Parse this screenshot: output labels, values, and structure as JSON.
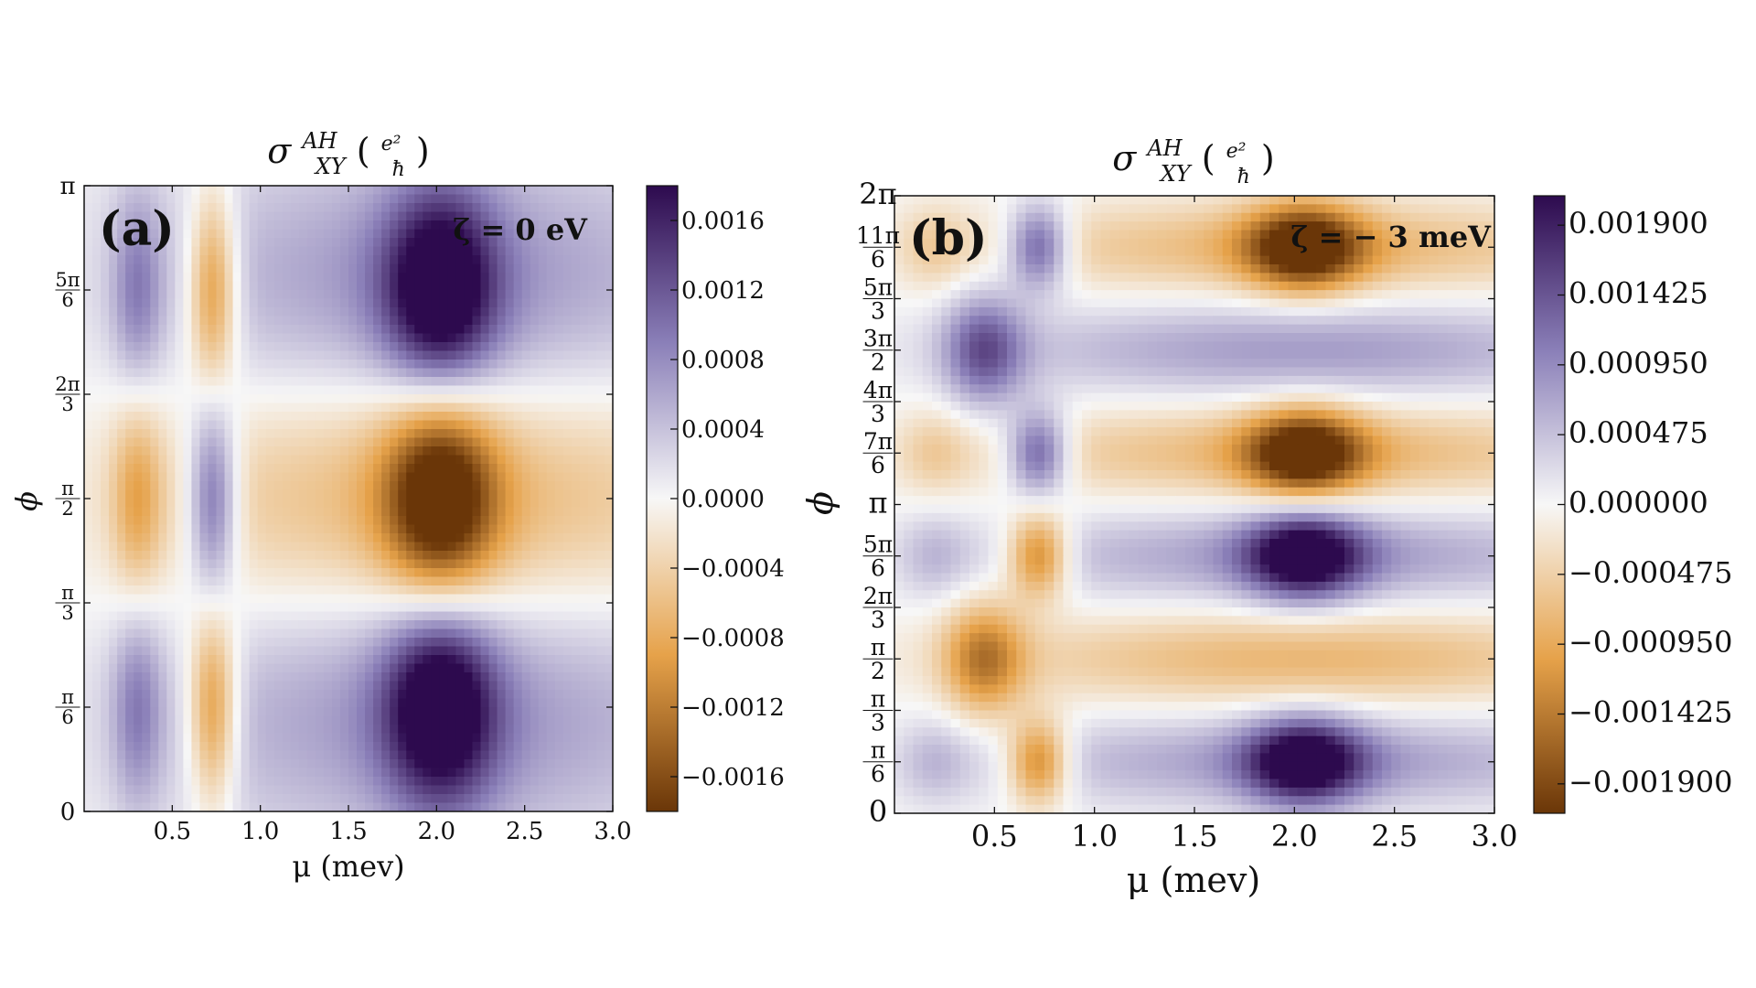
{
  "chart_data": [
    {
      "panel": "(a)",
      "type": "heatmap",
      "title_sym": "σ",
      "title_sup": "AH",
      "title_sub": "XY",
      "title_unit_num": "e²",
      "title_unit_den": "ħ",
      "annotation": "ζ = 0 eV",
      "xlabel": "μ (mev)",
      "ylabel": "ϕ",
      "xlim": [
        0.0,
        3.0
      ],
      "ylim_rad": [
        0,
        3.14159
      ],
      "xticks": [
        {
          "value": 0.5,
          "label": "0.5"
        },
        {
          "value": 1.0,
          "label": "1.0"
        },
        {
          "value": 1.5,
          "label": "1.5"
        },
        {
          "value": 2.0,
          "label": "2.0"
        },
        {
          "value": 2.5,
          "label": "2.5"
        },
        {
          "value": 3.0,
          "label": "3.0"
        }
      ],
      "yticks": [
        {
          "value": 0,
          "label": "0"
        },
        {
          "value": 0.5236,
          "num": "π",
          "den": "6"
        },
        {
          "value": 1.0472,
          "num": "π",
          "den": "3"
        },
        {
          "value": 1.5708,
          "num": "π",
          "den": "2"
        },
        {
          "value": 2.0944,
          "num": "2π",
          "den": "3"
        },
        {
          "value": 2.618,
          "num": "5π",
          "den": "6"
        },
        {
          "value": 3.14159,
          "label": "π"
        }
      ],
      "colorbar": {
        "range": [
          -0.0018,
          0.0018
        ],
        "ticks": [
          {
            "value": 0.0016,
            "label": "0.0016"
          },
          {
            "value": 0.0012,
            "label": "0.0012"
          },
          {
            "value": 0.0008,
            "label": "0.0008"
          },
          {
            "value": 0.0004,
            "label": "0.0004"
          },
          {
            "value": 0.0,
            "label": "0.0000"
          },
          {
            "value": -0.0004,
            "label": "−0.0004"
          },
          {
            "value": -0.0008,
            "label": "−0.0008"
          },
          {
            "value": -0.0012,
            "label": "−0.0012"
          },
          {
            "value": -0.0016,
            "label": "−0.0016"
          }
        ]
      },
      "features_description": "alternating bands in phi with sign flips at pi/3 and 2pi/3; extremes near mu=2.0",
      "blobs": [
        {
          "mu": 0.3,
          "phi": 2.618,
          "smu": 0.1,
          "sphi": 0.35,
          "amp": 0.0007
        },
        {
          "mu": 0.73,
          "phi": 2.618,
          "smu": 0.1,
          "sphi": 0.35,
          "amp": -0.0012
        },
        {
          "mu": 2.02,
          "phi": 2.618,
          "smu": 0.22,
          "sphi": 0.35,
          "amp": 0.0018
        },
        {
          "mu": 2.02,
          "phi": 2.618,
          "smu": 1.2,
          "sphi": 0.5,
          "amp": 0.0008
        },
        {
          "mu": 0.3,
          "phi": 1.5708,
          "smu": 0.1,
          "sphi": 0.35,
          "amp": -0.0007
        },
        {
          "mu": 0.73,
          "phi": 1.5708,
          "smu": 0.1,
          "sphi": 0.35,
          "amp": 0.0012
        },
        {
          "mu": 2.02,
          "phi": 1.5708,
          "smu": 0.22,
          "sphi": 0.35,
          "amp": -0.0018
        },
        {
          "mu": 2.02,
          "phi": 1.5708,
          "smu": 1.2,
          "sphi": 0.5,
          "amp": -0.0008
        },
        {
          "mu": 0.3,
          "phi": 0.5236,
          "smu": 0.1,
          "sphi": 0.35,
          "amp": 0.0007
        },
        {
          "mu": 0.73,
          "phi": 0.5236,
          "smu": 0.1,
          "sphi": 0.35,
          "amp": -0.0012
        },
        {
          "mu": 2.02,
          "phi": 0.5236,
          "smu": 0.22,
          "sphi": 0.35,
          "amp": 0.0018
        },
        {
          "mu": 2.02,
          "phi": 0.5236,
          "smu": 1.2,
          "sphi": 0.5,
          "amp": 0.0008
        }
      ]
    },
    {
      "panel": "(b)",
      "type": "heatmap",
      "title_sym": "σ",
      "title_sup": "AH",
      "title_sub": "XY",
      "title_unit_num": "e²",
      "title_unit_den": "ħ",
      "annotation": "ζ = − 3 meV",
      "xlabel": "μ (mev)",
      "ylabel": "ϕ",
      "xlim": [
        0.0,
        3.0
      ],
      "ylim_rad": [
        0,
        6.28318
      ],
      "xticks": [
        {
          "value": 0.5,
          "label": "0.5"
        },
        {
          "value": 1.0,
          "label": "1.0"
        },
        {
          "value": 1.5,
          "label": "1.5"
        },
        {
          "value": 2.0,
          "label": "2.0"
        },
        {
          "value": 2.5,
          "label": "2.5"
        },
        {
          "value": 3.0,
          "label": "3.0"
        }
      ],
      "yticks": [
        {
          "value": 0,
          "label": "0"
        },
        {
          "value": 0.5236,
          "num": "π",
          "den": "6"
        },
        {
          "value": 1.0472,
          "num": "π",
          "den": "3"
        },
        {
          "value": 1.5708,
          "num": "π",
          "den": "2"
        },
        {
          "value": 2.0944,
          "num": "2π",
          "den": "3"
        },
        {
          "value": 2.618,
          "num": "5π",
          "den": "6"
        },
        {
          "value": 3.14159,
          "label": "π"
        },
        {
          "value": 3.6652,
          "num": "7π",
          "den": "6"
        },
        {
          "value": 4.1888,
          "num": "4π",
          "den": "3"
        },
        {
          "value": 4.7124,
          "num": "3π",
          "den": "2"
        },
        {
          "value": 5.236,
          "num": "5π",
          "den": "3"
        },
        {
          "value": 5.7596,
          "num": "11π",
          "den": "6"
        },
        {
          "value": 6.28318,
          "label": "2π"
        }
      ],
      "colorbar": {
        "range": [
          -0.0021,
          0.0021
        ],
        "ticks": [
          {
            "value": 0.0019,
            "label": "0.001900"
          },
          {
            "value": 0.001425,
            "label": "0.001425"
          },
          {
            "value": 0.00095,
            "label": "0.000950"
          },
          {
            "value": 0.000475,
            "label": "0.000475"
          },
          {
            "value": 0.0,
            "label": "0.000000"
          },
          {
            "value": -0.000475,
            "label": "−0.000475"
          },
          {
            "value": -0.00095,
            "label": "−0.000950"
          },
          {
            "value": -0.001425,
            "label": "−0.001425"
          },
          {
            "value": -0.0019,
            "label": "−0.001900"
          }
        ]
      },
      "blobs": [
        {
          "mu": 0.2,
          "phi": 0.5236,
          "smu": 0.12,
          "sphi": 0.3,
          "amp": 0.0004
        },
        {
          "mu": 0.72,
          "phi": 0.5236,
          "smu": 0.11,
          "sphi": 0.3,
          "amp": -0.0015
        },
        {
          "mu": 2.05,
          "phi": 0.5236,
          "smu": 0.2,
          "sphi": 0.3,
          "amp": 0.0021
        },
        {
          "mu": 2.05,
          "phi": 0.5236,
          "smu": 1.1,
          "sphi": 0.32,
          "amp": 0.0008
        },
        {
          "mu": 0.45,
          "phi": 1.5708,
          "smu": 0.14,
          "sphi": 0.4,
          "amp": -0.0013
        },
        {
          "mu": 2.05,
          "phi": 1.5708,
          "smu": 1.1,
          "sphi": 0.32,
          "amp": -0.0008
        },
        {
          "mu": 0.2,
          "phi": 2.618,
          "smu": 0.12,
          "sphi": 0.3,
          "amp": 0.0004
        },
        {
          "mu": 0.72,
          "phi": 2.618,
          "smu": 0.11,
          "sphi": 0.3,
          "amp": -0.0015
        },
        {
          "mu": 2.05,
          "phi": 2.618,
          "smu": 0.2,
          "sphi": 0.3,
          "amp": 0.0021
        },
        {
          "mu": 2.05,
          "phi": 2.618,
          "smu": 1.1,
          "sphi": 0.32,
          "amp": 0.0008
        },
        {
          "mu": 0.2,
          "phi": 3.6652,
          "smu": 0.12,
          "sphi": 0.3,
          "amp": -0.0004
        },
        {
          "mu": 0.72,
          "phi": 3.6652,
          "smu": 0.11,
          "sphi": 0.3,
          "amp": 0.0015
        },
        {
          "mu": 2.05,
          "phi": 3.6652,
          "smu": 0.2,
          "sphi": 0.3,
          "amp": -0.0021
        },
        {
          "mu": 2.05,
          "phi": 3.6652,
          "smu": 1.1,
          "sphi": 0.32,
          "amp": -0.0008
        },
        {
          "mu": 0.45,
          "phi": 4.7124,
          "smu": 0.14,
          "sphi": 0.4,
          "amp": 0.0013
        },
        {
          "mu": 2.05,
          "phi": 4.7124,
          "smu": 1.1,
          "sphi": 0.32,
          "amp": 0.0008
        },
        {
          "mu": 0.2,
          "phi": 5.7596,
          "smu": 0.12,
          "sphi": 0.3,
          "amp": -0.0004
        },
        {
          "mu": 0.72,
          "phi": 5.7596,
          "smu": 0.11,
          "sphi": 0.3,
          "amp": 0.0015
        },
        {
          "mu": 2.05,
          "phi": 5.7596,
          "smu": 0.2,
          "sphi": 0.3,
          "amp": -0.0021
        },
        {
          "mu": 2.05,
          "phi": 5.7596,
          "smu": 1.1,
          "sphi": 0.32,
          "amp": -0.0008
        }
      ]
    }
  ],
  "colors": {
    "positive_max": "#2d0a4e",
    "positive_mid": "#8a7fb8",
    "zero": "#f7f7f7",
    "negative_mid": "#e6a24a",
    "negative_max": "#6a3608"
  }
}
